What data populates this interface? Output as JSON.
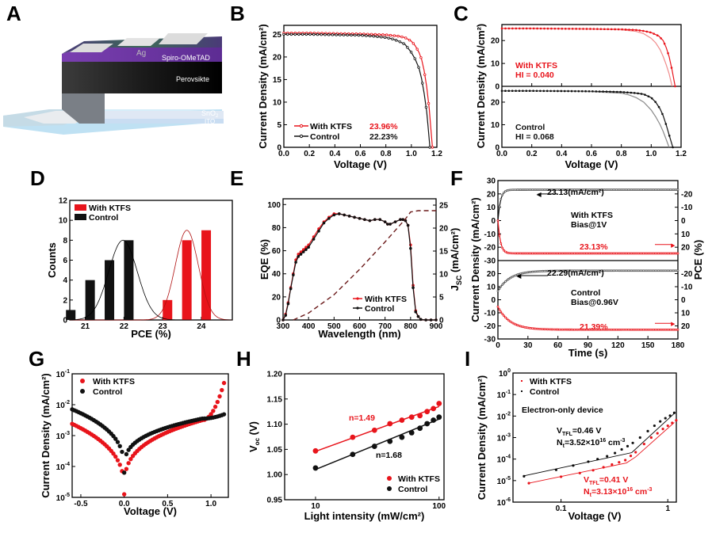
{
  "panel_labels": [
    "A",
    "B",
    "C",
    "D",
    "E",
    "F",
    "G",
    "H",
    "I"
  ],
  "panel_a": {
    "layers": [
      "Ag",
      "Spiro-OMeTAD",
      "Perovsikte",
      "SnO2",
      "ITO"
    ],
    "layer_sno2_base": "SnO",
    "layer_sno2_sub": "2"
  },
  "colors": {
    "ktfs": "#e8141b",
    "control": "#111111",
    "ktfs_light": "#f08a8a",
    "control_light": "#8a8a8a",
    "dash": "#6b1a1a"
  },
  "chart_data": [
    {
      "id": "B",
      "type": "line",
      "xlabel": "Voltage (V)",
      "ylabel": "Current Density (mA/cm²)",
      "xlim": [
        0,
        1.2
      ],
      "ylim": [
        0,
        27
      ],
      "xticks": [
        "0.0",
        "0.2",
        "0.4",
        "0.6",
        "0.8",
        "1.0",
        "1.2"
      ],
      "yticks": [
        "0",
        "5",
        "10",
        "15",
        "20",
        "25"
      ],
      "legend": [
        {
          "name": "With KTFS",
          "pce": "23.96%"
        },
        {
          "name": "Control",
          "pce": "22.23%"
        }
      ],
      "series": [
        {
          "name": "With KTFS",
          "x": [
            0,
            0.1,
            0.2,
            0.3,
            0.4,
            0.5,
            0.6,
            0.7,
            0.8,
            0.9,
            0.95,
            1.0,
            1.03,
            1.06,
            1.08,
            1.1,
            1.12,
            1.14,
            1.15,
            1.165
          ],
          "y": [
            25.3,
            25.3,
            25.3,
            25.25,
            25.2,
            25.15,
            25.1,
            25.0,
            24.9,
            24.6,
            24.3,
            23.5,
            22.5,
            21.0,
            19.5,
            17.0,
            13.5,
            8.5,
            5.0,
            0
          ]
        },
        {
          "name": "Control",
          "x": [
            0,
            0.1,
            0.2,
            0.3,
            0.4,
            0.5,
            0.6,
            0.7,
            0.8,
            0.85,
            0.9,
            0.95,
            1.0,
            1.03,
            1.06,
            1.08,
            1.1,
            1.12,
            1.13,
            1.145
          ],
          "y": [
            25.0,
            25.0,
            25.0,
            24.95,
            24.9,
            24.85,
            24.8,
            24.6,
            24.3,
            24.0,
            23.5,
            22.8,
            21.0,
            19.5,
            17.5,
            15.2,
            12.0,
            8.0,
            5.0,
            0
          ]
        }
      ]
    },
    {
      "id": "C",
      "type": "line",
      "xlabel": "Voltage (V)",
      "ylabel": "Current Density (mA/cm²)",
      "xlim": [
        0,
        1.2
      ],
      "xticks": [
        "0.0",
        "0.2",
        "0.4",
        "0.6",
        "0.8",
        "1.0",
        "1.2"
      ],
      "subplots": [
        {
          "label": "With KTFS",
          "hi": "HI = 0.040",
          "ylim": [
            0,
            27
          ],
          "yticks": [
            "0",
            "10",
            "20"
          ],
          "reverse": {
            "x": [
              0,
              0.2,
              0.4,
              0.6,
              0.8,
              0.9,
              0.95,
              1.0,
              1.05,
              1.08,
              1.1,
              1.12,
              1.14,
              1.16
            ],
            "y": [
              25.3,
              25.3,
              25.2,
              25.1,
              24.9,
              24.6,
              24.2,
              23.5,
              22,
              20,
              17,
              13,
              7,
              0
            ]
          },
          "forward": {
            "x": [
              0,
              0.2,
              0.4,
              0.6,
              0.8,
              0.9,
              0.95,
              1.0,
              1.03,
              1.06,
              1.08,
              1.1,
              1.12,
              1.14
            ],
            "y": [
              25.2,
              25.2,
              25.1,
              25.0,
              24.7,
              24.0,
              23.0,
              21.0,
              19.0,
              16.0,
              13.0,
              9.5,
              5.5,
              0
            ]
          }
        },
        {
          "label": "Control",
          "hi": "HI = 0.068",
          "ylim": [
            0,
            27
          ],
          "yticks": [
            "0",
            "10",
            "20"
          ],
          "reverse": {
            "x": [
              0,
              0.2,
              0.4,
              0.6,
              0.8,
              0.9,
              0.95,
              1.0,
              1.03,
              1.06,
              1.08,
              1.1,
              1.12,
              1.145
            ],
            "y": [
              25.0,
              25.0,
              24.9,
              24.8,
              24.5,
              24.0,
              23.5,
              22.0,
              20.0,
              17.0,
              14.0,
              10.0,
              5.5,
              0
            ]
          },
          "forward": {
            "x": [
              0,
              0.2,
              0.4,
              0.6,
              0.8,
              0.85,
              0.9,
              0.95,
              1.0,
              1.03,
              1.06,
              1.08,
              1.1,
              1.12
            ],
            "y": [
              24.9,
              24.9,
              24.8,
              24.6,
              24.0,
              23.2,
              22.0,
              20.0,
              16.5,
              13.5,
              10.0,
              7.0,
              3.5,
              0
            ]
          }
        }
      ]
    },
    {
      "id": "D",
      "type": "bar",
      "xlabel": "PCE (%)",
      "ylabel": "Counts",
      "xlim": [
        20.6,
        24.8
      ],
      "ylim": [
        0,
        12
      ],
      "xticks": [
        "21",
        "22",
        "23",
        "24"
      ],
      "yticks": [
        "0",
        "2",
        "4",
        "6",
        "8",
        "10",
        "12"
      ],
      "series": [
        {
          "name": "With KTFS",
          "bins": [
            23.0,
            23.5,
            24.0
          ],
          "values": [
            2,
            8,
            9
          ],
          "fit_mean": 23.5,
          "fit_peak": 9,
          "fit_sigma": 0.3
        },
        {
          "name": "Control",
          "bins": [
            20.5,
            21.0,
            21.5,
            22.0
          ],
          "values": [
            1,
            4,
            6,
            8
          ],
          "fit_mean": 21.85,
          "fit_peak": 8,
          "fit_sigma": 0.37
        }
      ]
    },
    {
      "id": "E",
      "type": "line",
      "xlabel": "Wavelength (nm)",
      "ylabel": "EQE (%)",
      "ylabel_right": "J",
      "ylabel_right_sub": "SC",
      "ylabel_right_unit": " (mA/cm²)",
      "xlim": [
        300,
        900
      ],
      "ylim": [
        0,
        105
      ],
      "ylim_right": [
        0,
        25
      ],
      "xticks": [
        "300",
        "400",
        "500",
        "600",
        "700",
        "800",
        "900"
      ],
      "yticks": [
        "0",
        "20",
        "40",
        "60",
        "80",
        "100"
      ],
      "yticks_right": [
        "0",
        "5",
        "10",
        "15",
        "20",
        "25"
      ],
      "legend": [
        "With KTFS",
        "Control"
      ],
      "series": [
        {
          "name": "With KTFS",
          "x": [
            300,
            310,
            320,
            330,
            340,
            350,
            360,
            370,
            380,
            390,
            400,
            420,
            440,
            460,
            480,
            500,
            520,
            540,
            560,
            580,
            600,
            620,
            640,
            660,
            680,
            700,
            710,
            720,
            740,
            760,
            770,
            780,
            790,
            800,
            810,
            820,
            830,
            840,
            860,
            880,
            900
          ],
          "y": [
            0,
            5,
            15,
            28,
            40,
            52,
            57,
            59,
            61,
            63,
            65,
            72,
            79,
            85,
            89,
            92,
            92,
            91,
            90,
            89,
            88,
            87,
            86,
            87,
            87,
            85,
            83,
            83,
            85,
            87,
            87,
            86,
            82,
            65,
            30,
            8,
            3,
            0.5,
            0,
            0,
            0
          ]
        },
        {
          "name": "Control",
          "x": [
            300,
            310,
            320,
            330,
            340,
            350,
            360,
            370,
            380,
            390,
            400,
            420,
            440,
            460,
            480,
            500,
            520,
            540,
            560,
            580,
            600,
            620,
            640,
            660,
            680,
            700,
            710,
            720,
            740,
            760,
            770,
            780,
            790,
            800,
            810,
            820,
            830,
            840,
            860,
            880,
            900
          ],
          "y": [
            0,
            4,
            14,
            27,
            39,
            50,
            55,
            57,
            59,
            61,
            63,
            70,
            77,
            84,
            88,
            91,
            92,
            91,
            90,
            89,
            88,
            87,
            86,
            87,
            87,
            85,
            83,
            83,
            85,
            87,
            87,
            86,
            82,
            62,
            28,
            7,
            3,
            0.5,
            0,
            0,
            0
          ]
        },
        {
          "name": "Jsc integrated",
          "axis": "right",
          "x": [
            340,
            400,
            500,
            600,
            700,
            780,
            800,
            830,
            900
          ],
          "y": [
            0,
            1.5,
            5.5,
            11,
            17,
            22,
            23.5,
            23.8,
            23.8
          ]
        }
      ]
    },
    {
      "id": "F",
      "type": "line",
      "xlabel": "Time (s)",
      "ylabel": "Current Density (mA/cm²)",
      "ylabel_right": "PCE (%)",
      "xlim": [
        0,
        180
      ],
      "xticks": [
        "0",
        "30",
        "60",
        "90",
        "120",
        "150",
        "180"
      ],
      "subplots": [
        {
          "label": "With KTFS",
          "bias": "Bias@1V",
          "jsc": "23.13",
          "jsc_unit": "(mA/cm²)",
          "pce": "23.13%",
          "ylim": [
            -30,
            30
          ],
          "yticks": [
            "-30",
            "-20",
            "-10",
            "0",
            "10",
            "20",
            "30"
          ],
          "yticks_right": [
            "20",
            "10",
            "0",
            "-10",
            "-20"
          ],
          "j_final": 23.13,
          "pce_final": 23.13,
          "tau": 2.5
        },
        {
          "label": "Control",
          "bias": "Bias@0.96V",
          "jsc": "22.29",
          "jsc_unit": "(mA/cm²)",
          "pce": "21.39%",
          "ylim": [
            -30,
            30
          ],
          "yticks": [
            "-30",
            "-20",
            "-10",
            "0",
            "10",
            "20"
          ],
          "yticks_right": [
            "20",
            "10",
            "0",
            "-10",
            "-20"
          ],
          "j_final": 22.29,
          "pce_final": 21.39,
          "tau": 12
        }
      ]
    },
    {
      "id": "G",
      "type": "scatter",
      "xlabel": "Voltage (V)",
      "ylabel": "Current Density (mA/cm²)",
      "xlim": [
        -0.6,
        1.2
      ],
      "ylim_log10": [
        -5,
        -1
      ],
      "xticks": [
        "-0.5",
        "0.0",
        "0.5",
        "1.0"
      ],
      "yticks": [
        {
          "base": "10",
          "exp": "-5"
        },
        {
          "base": "10",
          "exp": "-4"
        },
        {
          "base": "10",
          "exp": "-3"
        },
        {
          "base": "10",
          "exp": "-2"
        },
        {
          "base": "10",
          "exp": "-1"
        }
      ],
      "legend": [
        "With KTFS",
        "Control"
      ],
      "series": [
        {
          "name": "With KTFS",
          "left_log": -2.62,
          "min_log": -4.9,
          "mid_log": -2.5,
          "right_log": -1.2
        },
        {
          "name": "Control",
          "left_log": -2.15,
          "min_log": -4.2,
          "mid_log": -2.45,
          "right_log": -2.2
        }
      ]
    },
    {
      "id": "H",
      "type": "scatter",
      "xlabel": "Light intensity (mW/cm²)",
      "ylabel": "V",
      "ylabel_sub": "oc",
      "ylabel_unit": " (V)",
      "xlim_log10": [
        0.8,
        2.04
      ],
      "ylim": [
        0.95,
        1.2
      ],
      "xticks": [
        "10",
        "100"
      ],
      "yticks": [
        "0.95",
        "1.00",
        "1.05",
        "1.10",
        "1.15",
        "1.20"
      ],
      "legend": [
        "With KTFS",
        "Control"
      ],
      "annotations": [
        "n=1.49",
        "n=1.68"
      ],
      "series": [
        {
          "name": "With KTFS",
          "x": [
            10,
            20,
            30,
            40,
            50,
            60,
            70,
            80,
            90,
            100
          ],
          "y": [
            1.047,
            1.074,
            1.088,
            1.101,
            1.108,
            1.114,
            1.117,
            1.125,
            1.131,
            1.141
          ],
          "fit": [
            1.046,
            1.135
          ]
        },
        {
          "name": "Control",
          "x": [
            10,
            20,
            30,
            40,
            50,
            60,
            70,
            80,
            90,
            100
          ],
          "y": [
            1.013,
            1.04,
            1.056,
            1.066,
            1.074,
            1.083,
            1.092,
            1.101,
            1.108,
            1.114
          ],
          "fit": [
            1.01,
            1.11
          ]
        }
      ]
    },
    {
      "id": "I",
      "type": "scatter",
      "xlabel": "Voltage (V)",
      "ylabel": "Current Density (mA/cm²)",
      "xlim_log10": [
        -1.45,
        0.08
      ],
      "ylim_log10": [
        -6,
        0
      ],
      "xticks": [
        "0.1",
        "1"
      ],
      "yticks": [
        {
          "base": "10",
          "exp": "-6"
        },
        {
          "base": "10",
          "exp": "-5"
        },
        {
          "base": "10",
          "exp": "-4"
        },
        {
          "base": "10",
          "exp": "-3"
        },
        {
          "base": "10",
          "exp": "-2"
        },
        {
          "base": "10",
          "exp": "-1"
        },
        {
          "base": "10",
          "exp": "0"
        }
      ],
      "legend": [
        "With KTFS",
        "Control"
      ],
      "title_note": "Electron-only device",
      "annotations": {
        "control": {
          "v_pre": "V",
          "v_sub": "TFL",
          "v_val": "=0.46 V",
          "n_pre": "N",
          "n_sub": "t",
          "n_val": "=3.52×10",
          "n_exp": "16",
          "n_unit": " cm",
          "n_unit_exp": "-3"
        },
        "ktfs": {
          "v_pre": "V",
          "v_sub": "TFL",
          "v_val": "=0.41 V",
          "n_pre": "N",
          "n_sub": "t",
          "n_val": "=3.13×10",
          "n_exp": "16",
          "n_unit": " cm",
          "n_unit_exp": "-3"
        }
      },
      "series": [
        {
          "name": "With KTFS",
          "x": [
            0.05,
            0.1,
            0.15,
            0.2,
            0.25,
            0.3,
            0.35,
            0.4,
            0.45,
            0.5,
            0.6,
            0.7,
            0.8,
            0.9,
            1.0,
            1.1,
            1.2
          ],
          "logy": [
            -5.12,
            -4.82,
            -4.65,
            -4.52,
            -4.38,
            -4.25,
            -4.15,
            -4.05,
            -3.85,
            -3.68,
            -3.3,
            -3.0,
            -2.8,
            -2.6,
            -2.45,
            -2.32,
            -2.2
          ]
        },
        {
          "name": "Control",
          "x": [
            0.045,
            0.09,
            0.13,
            0.18,
            0.22,
            0.27,
            0.32,
            0.37,
            0.42,
            0.47,
            0.55,
            0.65,
            0.75,
            0.85,
            0.95,
            1.05,
            1.15
          ],
          "logy": [
            -4.8,
            -4.5,
            -4.3,
            -4.12,
            -4.0,
            -3.87,
            -3.72,
            -3.55,
            -3.4,
            -3.25,
            -3.0,
            -2.7,
            -2.45,
            -2.25,
            -2.1,
            -1.98,
            -1.85
          ]
        }
      ]
    }
  ]
}
